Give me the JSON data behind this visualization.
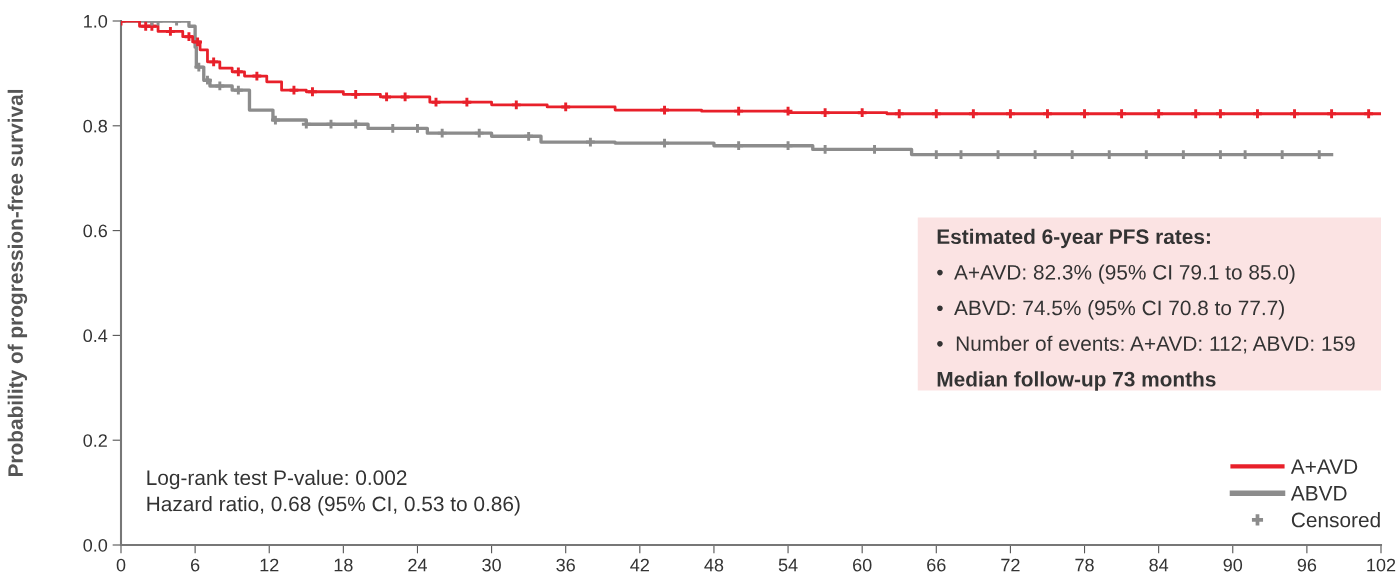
{
  "chart_data": {
    "type": "step",
    "ylabel": "Probability of progression-free survival",
    "xlim": [
      0,
      102
    ],
    "xticks": [
      0,
      6,
      12,
      18,
      24,
      30,
      36,
      42,
      48,
      54,
      60,
      66,
      72,
      78,
      84,
      90,
      96,
      102
    ],
    "ylim": [
      0,
      1.0
    ],
    "yticks": [
      {
        "value": 0,
        "label": "0.0"
      },
      {
        "value": 0.2,
        "label": "0.2"
      },
      {
        "value": 0.4,
        "label": "0.4"
      },
      {
        "value": 0.6,
        "label": "0.6"
      },
      {
        "value": 0.8,
        "label": "0.8"
      },
      {
        "value": 1.0,
        "label": "1.0"
      }
    ],
    "grid": false,
    "legend": "bottom right",
    "series": [
      {
        "name": "A+AVD",
        "color": "#e8202a",
        "x": [
          0,
          1.5,
          3,
          5,
          5.8,
          6.4,
          7,
          8,
          9,
          10,
          11.8,
          13,
          15,
          18,
          21,
          25,
          30,
          34.5,
          40,
          47,
          54,
          62,
          102
        ],
        "values": [
          1.0,
          0.99,
          0.98,
          0.97,
          0.96,
          0.945,
          0.922,
          0.91,
          0.903,
          0.895,
          0.884,
          0.868,
          0.865,
          0.86,
          0.855,
          0.845,
          0.84,
          0.836,
          0.83,
          0.828,
          0.825,
          0.823,
          0.823
        ]
      },
      {
        "name": "ABVD",
        "color": "#8c8c8c",
        "x": [
          0,
          5.5,
          6,
          6.1,
          6.7,
          7.2,
          9,
          10.4,
          12.3,
          15,
          20,
          24.8,
          30,
          34,
          40,
          48,
          56,
          64,
          98
        ],
        "values": [
          1.0,
          0.99,
          0.95,
          0.912,
          0.887,
          0.876,
          0.868,
          0.83,
          0.811,
          0.803,
          0.795,
          0.786,
          0.78,
          0.769,
          0.767,
          0.762,
          0.755,
          0.745,
          0.745
        ]
      },
      {
        "type": "scatter",
        "marker": "cross",
        "color": "#e8202a",
        "x": [
          0,
          2,
          2.5,
          4,
          5.5,
          6.2,
          7.5,
          9.5,
          11,
          14,
          15.5,
          19,
          21.5,
          23,
          25.5,
          28,
          32,
          36,
          44,
          50,
          54,
          57,
          60,
          63,
          66,
          69,
          72,
          75,
          78,
          81,
          84,
          87,
          89,
          92,
          95,
          98,
          101
        ],
        "values": [
          1.0,
          0.99,
          0.99,
          0.98,
          0.97,
          0.96,
          0.922,
          0.903,
          0.895,
          0.868,
          0.865,
          0.86,
          0.855,
          0.855,
          0.845,
          0.845,
          0.84,
          0.836,
          0.83,
          0.828,
          0.828,
          0.825,
          0.825,
          0.823,
          0.823,
          0.823,
          0.823,
          0.823,
          0.823,
          0.823,
          0.823,
          0.823,
          0.823,
          0.823,
          0.823,
          0.823,
          0.823
        ]
      },
      {
        "name": "Censored",
        "type": "scatter",
        "marker": "cross",
        "color": "#8c8c8c",
        "x": [
          2.5,
          3,
          4.5,
          6.3,
          7,
          8,
          9.5,
          12.5,
          15,
          17,
          19,
          22,
          24,
          26,
          29,
          33,
          38,
          44,
          50,
          54,
          57,
          61,
          66,
          68,
          71,
          74,
          77,
          80,
          83,
          86,
          89,
          91,
          94,
          97
        ],
        "values": [
          1.0,
          1.0,
          1.0,
          0.912,
          0.887,
          0.876,
          0.868,
          0.811,
          0.803,
          0.803,
          0.803,
          0.795,
          0.795,
          0.786,
          0.786,
          0.78,
          0.769,
          0.767,
          0.762,
          0.762,
          0.755,
          0.755,
          0.745,
          0.745,
          0.745,
          0.745,
          0.745,
          0.745,
          0.745,
          0.745,
          0.745,
          0.745,
          0.745,
          0.745
        ]
      }
    ],
    "annotations": [
      "Log-rank test P-value: 0.002",
      "Hazard ratio, 0.68 (95% CI, 0.53 to 0.86)",
      "Estimated 6-year PFS rates:",
      "•  A+AVD: 82.3% (95% CI 79.1 to 85.0)",
      "•  ABVD: 74.5% (95% CI 70.8 to 77.7)",
      "•  Number of events: A+AVD: 112; ABVD: 159",
      "Median follow-up 73 months"
    ]
  }
}
